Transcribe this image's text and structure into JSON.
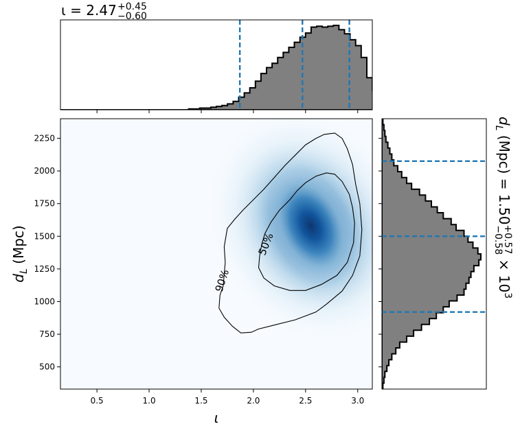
{
  "chart_data": [
    {
      "type": "heatmap",
      "panel": "joint",
      "xlabel_symbol": "ι",
      "ylabel_symbol": "d",
      "ylabel_subscript": "L",
      "ylabel_unit": "(Mpc)",
      "xlim": [
        0.15,
        3.14
      ],
      "ylim": [
        330,
        2400
      ],
      "xticks": [
        "0.5",
        "1.0",
        "1.5",
        "2.0",
        "2.5",
        "3.0"
      ],
      "xtick_values": [
        0.5,
        1.0,
        1.5,
        2.0,
        2.5,
        3.0
      ],
      "yticks": [
        "500",
        "750",
        "1000",
        "1250",
        "1500",
        "1750",
        "2000",
        "2250"
      ],
      "ytick_values": [
        500,
        750,
        1000,
        1250,
        1500,
        1750,
        2000,
        2250
      ],
      "density_peak": {
        "x": 2.55,
        "y": 1580
      },
      "colormap": "Blues",
      "contours": [
        {
          "label": "50%",
          "points": [
            [
              2.05,
              1260
            ],
            [
              2.1,
              1180
            ],
            [
              2.2,
              1120
            ],
            [
              2.35,
              1085
            ],
            [
              2.5,
              1085
            ],
            [
              2.65,
              1130
            ],
            [
              2.8,
              1200
            ],
            [
              2.9,
              1300
            ],
            [
              2.96,
              1450
            ],
            [
              2.97,
              1600
            ],
            [
              2.95,
              1720
            ],
            [
              2.92,
              1820
            ],
            [
              2.85,
              1920
            ],
            [
              2.78,
              1975
            ],
            [
              2.7,
              1985
            ],
            [
              2.6,
              1960
            ],
            [
              2.5,
              1910
            ],
            [
              2.42,
              1850
            ],
            [
              2.35,
              1780
            ],
            [
              2.25,
              1700
            ],
            [
              2.17,
              1610
            ],
            [
              2.11,
              1520
            ],
            [
              2.08,
              1440
            ],
            [
              2.06,
              1350
            ]
          ]
        },
        {
          "label": "90%",
          "points": [
            [
              1.67,
              950
            ],
            [
              1.72,
              880
            ],
            [
              1.8,
              810
            ],
            [
              1.88,
              760
            ],
            [
              1.98,
              765
            ],
            [
              2.05,
              790
            ],
            [
              2.2,
              820
            ],
            [
              2.4,
              860
            ],
            [
              2.6,
              920
            ],
            [
              2.7,
              980
            ],
            [
              2.85,
              1080
            ],
            [
              2.95,
              1200
            ],
            [
              3.02,
              1350
            ],
            [
              3.04,
              1550
            ],
            [
              3.02,
              1750
            ],
            [
              2.98,
              1900
            ],
            [
              2.95,
              2050
            ],
            [
              2.9,
              2170
            ],
            [
              2.85,
              2250
            ],
            [
              2.78,
              2290
            ],
            [
              2.68,
              2280
            ],
            [
              2.6,
              2250
            ],
            [
              2.5,
              2200
            ],
            [
              2.4,
              2120
            ],
            [
              2.3,
              2040
            ],
            [
              2.2,
              1950
            ],
            [
              2.1,
              1860
            ],
            [
              2.0,
              1780
            ],
            [
              1.9,
              1700
            ],
            [
              1.82,
              1630
            ],
            [
              1.75,
              1560
            ],
            [
              1.72,
              1420
            ],
            [
              1.73,
              1300
            ],
            [
              1.71,
              1120
            ],
            [
              1.68,
              1050
            ]
          ]
        }
      ]
    },
    {
      "type": "bar",
      "panel": "top-marginal",
      "title_symbol": "ι",
      "title_value": "2.47",
      "title_plus": "+0.45",
      "title_minus": "−0.60",
      "bin_edges_start": 0.15,
      "bin_width": 0.0534,
      "values": [
        0,
        0,
        0,
        0,
        0,
        0,
        0,
        0,
        0,
        0,
        0,
        0,
        0,
        0,
        0,
        0,
        0,
        0,
        0,
        0,
        0,
        0,
        0,
        0.01,
        0.01,
        0.02,
        0.02,
        0.03,
        0.04,
        0.05,
        0.07,
        0.1,
        0.15,
        0.2,
        0.26,
        0.34,
        0.43,
        0.5,
        0.55,
        0.62,
        0.68,
        0.74,
        0.8,
        0.86,
        0.91,
        0.98,
        0.99,
        0.98,
        0.99,
        1.0,
        0.95,
        0.9,
        0.83,
        0.76,
        0.62,
        0.38,
        0.23,
        0.12,
        0.08,
        0.04
      ],
      "quantile_lines": [
        1.87,
        2.47,
        2.92
      ],
      "line_color": "#1f77b4",
      "fill_color": "#808080"
    },
    {
      "type": "bar",
      "panel": "right-marginal",
      "orientation": "horizontal",
      "label_symbol": "d",
      "label_subscript": "L",
      "label_unit": "(Mpc)",
      "label_value": "1.50",
      "label_plus": "+0.57",
      "label_minus": "−0.58",
      "label_scale": "× 10",
      "label_exponent": "3",
      "bin_edges_start": 330,
      "bin_width": 45,
      "values": [
        0.01,
        0.02,
        0.03,
        0.05,
        0.07,
        0.1,
        0.14,
        0.18,
        0.25,
        0.32,
        0.4,
        0.48,
        0.55,
        0.62,
        0.68,
        0.76,
        0.83,
        0.85,
        0.88,
        0.9,
        0.93,
        0.98,
        1.0,
        0.97,
        0.92,
        0.87,
        0.83,
        0.75,
        0.7,
        0.62,
        0.56,
        0.5,
        0.44,
        0.38,
        0.3,
        0.25,
        0.2,
        0.16,
        0.12,
        0.1,
        0.08,
        0.06,
        0.04,
        0.03,
        0.02,
        0.01
      ],
      "quantile_lines": [
        920,
        1500,
        2075
      ],
      "line_color": "#1f77b4",
      "fill_color": "#808080"
    }
  ]
}
